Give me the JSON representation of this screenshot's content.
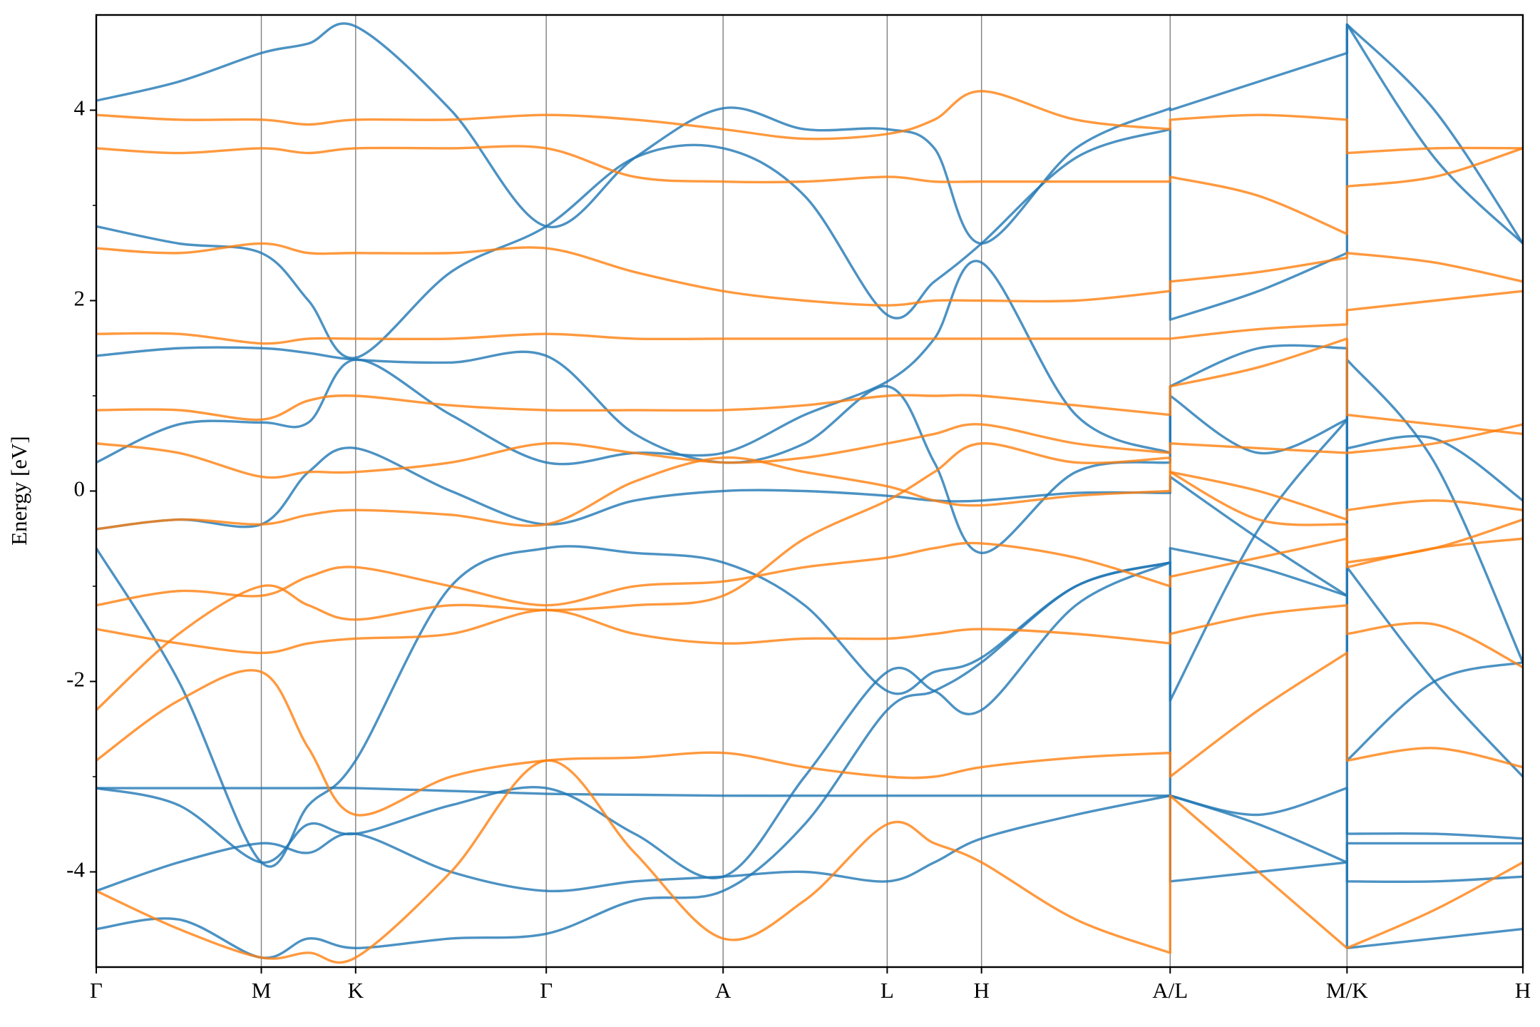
{
  "chart_data": {
    "type": "line",
    "ylabel": "Energy [eV]",
    "xlim": [
      0,
      14.52
    ],
    "xticks": [
      {
        "value": 0,
        "label": "Γ"
      },
      {
        "value": 1.68,
        "label": "M"
      },
      {
        "value": 2.64,
        "label": "K"
      },
      {
        "value": 4.58,
        "label": "Γ"
      },
      {
        "value": 6.38,
        "label": "A"
      },
      {
        "value": 8.05,
        "label": "L"
      },
      {
        "value": 9.01,
        "label": "H"
      },
      {
        "value": 10.93,
        "label": "A/L"
      },
      {
        "value": 12.73,
        "label": "M/K"
      },
      {
        "value": 14.52,
        "label": "H"
      }
    ],
    "ylim": [
      -5,
      5
    ],
    "yticks": [
      -4,
      -2,
      0,
      2,
      4
    ],
    "yminor_ticks": [
      -3,
      -1,
      1,
      3
    ],
    "grid": true,
    "line_opacity": 0.8,
    "x": [
      0,
      0.84,
      1.68,
      2.16,
      2.64,
      3.61,
      4.58,
      5.48,
      6.38,
      7.21,
      8.05,
      8.53,
      9.01,
      9.97,
      10.93,
      10.93,
      11.83,
      12.73,
      12.73,
      13.62,
      14.52
    ],
    "series": [
      {
        "color": "#1f77b4",
        "values": [
          -0.6,
          -2.0,
          -3.9,
          -3.3,
          -2.83,
          -1.0,
          -0.6,
          -0.65,
          -0.75,
          -1.2,
          -2.1,
          -1.9,
          -1.75,
          -1.0,
          -0.75,
          -2.2,
          -0.4,
          0.75,
          1.38,
          0.3,
          -1.8
        ]
      },
      {
        "color": "#1f77b4",
        "values": [
          -0.4,
          -0.3,
          -0.35,
          0.2,
          0.45,
          0.0,
          -0.35,
          -0.1,
          0.0,
          0.0,
          -0.05,
          -0.1,
          -0.1,
          -0.02,
          -0.02,
          0.15,
          -0.5,
          -1.1,
          0.45,
          0.55,
          -0.1
        ]
      },
      {
        "color": "#1f77b4",
        "values": [
          0.3,
          0.7,
          0.72,
          0.72,
          1.38,
          0.8,
          0.3,
          0.4,
          0.4,
          0.8,
          1.15,
          1.6,
          2.4,
          0.8,
          0.4,
          1.0,
          0.4,
          0.75,
          -0.8,
          -2.0,
          -3.0
        ]
      },
      {
        "color": "#1f77b4",
        "values": [
          1.42,
          1.5,
          1.5,
          1.45,
          1.38,
          1.35,
          1.42,
          0.6,
          0.3,
          0.5,
          1.1,
          0.3,
          -0.65,
          0.2,
          0.3,
          1.1,
          1.5,
          1.5,
          -2.83,
          -2.0,
          -1.8
        ]
      },
      {
        "color": "#1f77b4",
        "values": [
          2.78,
          2.6,
          2.5,
          2.0,
          1.4,
          2.3,
          2.78,
          3.5,
          3.6,
          3.1,
          1.85,
          2.2,
          2.6,
          3.5,
          3.8,
          1.8,
          2.1,
          2.5,
          4.9,
          3.5,
          2.6
        ]
      },
      {
        "color": "#1f77b4",
        "values": [
          -3.12,
          -3.12,
          -3.12,
          -3.12,
          -3.12,
          -3.15,
          -3.18,
          -3.19,
          -3.2,
          -3.2,
          -3.2,
          -3.2,
          -3.2,
          -3.2,
          -3.2,
          -3.2,
          -3.4,
          -3.12,
          -3.6,
          -3.6,
          -3.65
        ]
      },
      {
        "color": "#1f77b4",
        "values": [
          -4.2,
          -3.9,
          -3.7,
          -3.8,
          -3.6,
          -4.0,
          -4.2,
          -4.1,
          -4.05,
          -4.0,
          -4.1,
          -3.9,
          -3.65,
          -3.4,
          -3.2,
          -3.2,
          -3.5,
          -3.9,
          -3.7,
          -3.7,
          -3.7
        ]
      },
      {
        "color": "#1f77b4",
        "values": [
          -4.6,
          -4.5,
          -4.9,
          -4.7,
          -4.8,
          -4.7,
          -4.65,
          -4.3,
          -4.2,
          -3.5,
          -2.3,
          -2.1,
          -1.8,
          -1.0,
          -0.75,
          -0.6,
          -0.8,
          -1.1,
          -4.8,
          -4.7,
          -4.6
        ]
      },
      {
        "color": "#1f77b4",
        "values": [
          -3.12,
          -3.3,
          -3.9,
          -3.5,
          -3.6,
          -3.3,
          -3.12,
          -3.6,
          -4.05,
          -3.0,
          -1.9,
          -2.1,
          -2.3,
          -1.2,
          -0.75,
          -4.1,
          -4.0,
          -3.9,
          -4.1,
          -4.1,
          -4.05
        ]
      },
      {
        "color": "#1f77b4",
        "values": [
          4.1,
          4.3,
          4.6,
          4.7,
          4.88,
          4.0,
          2.78,
          3.5,
          4.02,
          3.8,
          3.8,
          3.6,
          2.6,
          3.6,
          4.02,
          4.0,
          4.3,
          4.6,
          4.9,
          4.0,
          2.6
        ]
      },
      {
        "color": "#ff7f0e",
        "values": [
          -2.83,
          -2.2,
          -1.9,
          -2.7,
          -3.4,
          -3.0,
          -2.83,
          -2.8,
          -2.75,
          -2.9,
          -3.0,
          -3.0,
          -2.9,
          -2.8,
          -2.75,
          -3.0,
          -2.3,
          -1.7,
          -2.83,
          -2.7,
          -2.9
        ]
      },
      {
        "color": "#ff7f0e",
        "values": [
          -1.45,
          -1.6,
          -1.7,
          -1.6,
          -1.55,
          -1.5,
          -1.25,
          -1.5,
          -1.6,
          -1.55,
          -1.55,
          -1.5,
          -1.45,
          -1.5,
          -1.6,
          -1.5,
          -1.3,
          -1.2,
          -1.5,
          -1.4,
          -1.85
        ]
      },
      {
        "color": "#ff7f0e",
        "values": [
          -1.2,
          -1.05,
          -1.1,
          -0.9,
          -0.8,
          -1.0,
          -1.2,
          -1.0,
          -0.95,
          -0.8,
          -0.7,
          -0.6,
          -0.55,
          -0.7,
          -1.0,
          -0.9,
          -0.7,
          -0.5,
          -0.8,
          -0.6,
          -0.5
        ]
      },
      {
        "color": "#ff7f0e",
        "values": [
          -0.4,
          -0.3,
          -0.35,
          -0.25,
          -0.2,
          -0.25,
          -0.35,
          0.1,
          0.35,
          0.2,
          0.05,
          -0.1,
          -0.15,
          -0.05,
          0.0,
          0.2,
          0.0,
          -0.3,
          -0.2,
          -0.1,
          -0.2
        ]
      },
      {
        "color": "#ff7f0e",
        "values": [
          0.5,
          0.4,
          0.15,
          0.2,
          0.2,
          0.3,
          0.5,
          0.4,
          0.3,
          0.35,
          0.5,
          0.6,
          0.7,
          0.5,
          0.4,
          0.5,
          0.45,
          0.4,
          0.4,
          0.5,
          0.7
        ]
      },
      {
        "color": "#ff7f0e",
        "values": [
          0.85,
          0.85,
          0.75,
          0.95,
          1.0,
          0.9,
          0.85,
          0.85,
          0.85,
          0.9,
          1.0,
          1.0,
          1.0,
          0.9,
          0.8,
          1.1,
          1.3,
          1.6,
          0.8,
          0.7,
          0.6
        ]
      },
      {
        "color": "#ff7f0e",
        "values": [
          1.65,
          1.65,
          1.55,
          1.6,
          1.6,
          1.6,
          1.65,
          1.6,
          1.6,
          1.6,
          1.6,
          1.6,
          1.6,
          1.6,
          1.6,
          1.6,
          1.7,
          1.75,
          1.9,
          2.0,
          2.1
        ]
      },
      {
        "color": "#ff7f0e",
        "values": [
          2.55,
          2.5,
          2.6,
          2.5,
          2.5,
          2.5,
          2.55,
          2.3,
          2.1,
          2.0,
          1.95,
          2.0,
          2.0,
          2.0,
          2.1,
          2.2,
          2.3,
          2.45,
          2.5,
          2.4,
          2.2
        ]
      },
      {
        "color": "#ff7f0e",
        "values": [
          3.6,
          3.55,
          3.6,
          3.55,
          3.6,
          3.6,
          3.6,
          3.3,
          3.25,
          3.25,
          3.3,
          3.25,
          3.25,
          3.25,
          3.25,
          3.3,
          3.1,
          2.7,
          3.2,
          3.3,
          3.6
        ]
      },
      {
        "color": "#ff7f0e",
        "values": [
          3.95,
          3.9,
          3.9,
          3.85,
          3.9,
          3.9,
          3.95,
          3.9,
          3.8,
          3.7,
          3.75,
          3.9,
          4.2,
          3.9,
          3.8,
          3.9,
          3.95,
          3.9,
          3.55,
          3.6,
          3.6
        ]
      },
      {
        "color": "#ff7f0e",
        "values": [
          -2.3,
          -1.5,
          -1.0,
          -1.2,
          -1.35,
          -1.2,
          -1.25,
          -1.2,
          -1.1,
          -0.5,
          -0.1,
          0.2,
          0.5,
          0.3,
          0.35,
          0.2,
          -0.3,
          -0.35,
          -0.75,
          -0.6,
          -0.3
        ]
      },
      {
        "color": "#ff7f0e",
        "values": [
          -4.2,
          -4.6,
          -4.9,
          -4.85,
          -4.9,
          -4.0,
          -2.83,
          -3.8,
          -4.7,
          -4.3,
          -3.5,
          -3.7,
          -3.9,
          -4.5,
          -4.85,
          -3.2,
          -4.0,
          -4.8,
          -4.8,
          -4.4,
          -3.9
        ]
      }
    ]
  }
}
